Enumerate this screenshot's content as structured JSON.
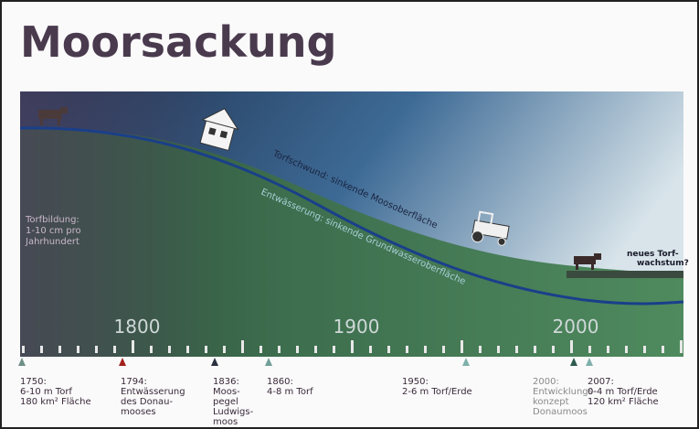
{
  "title": "Moorsackung",
  "diagram": {
    "peat_formation": [
      "Torfbildung:",
      "1-10 cm pro",
      "Jahrhundert"
    ],
    "surface_label": "Torfschwund: sinkende Moosoberfläche",
    "groundwater_label": "Entwässerung: sinkende Grundwasseroberfläche",
    "new_growth": [
      "neues Torf-",
      "wachstum?"
    ],
    "axis_labels": [
      "1800",
      "1900",
      "2000"
    ]
  },
  "events": [
    {
      "date": "1750:",
      "lines": [
        "6-10 m Torf",
        "180 km² Fläche"
      ]
    },
    {
      "date": "1794:",
      "lines": [
        "Entwässerung",
        "des Donau-",
        "mooses"
      ]
    },
    {
      "date": "1836:",
      "lines": [
        "Moos-",
        "pegel",
        "Ludwigs-",
        "moos"
      ]
    },
    {
      "date": "1860:",
      "lines": [
        "4-8 m Torf"
      ]
    },
    {
      "date": "1950:",
      "lines": [
        "2-6 m Torf/Erde"
      ]
    },
    {
      "date": "2000:",
      "lines": [
        "Entwicklungs-",
        "konzept",
        "Donaumoos"
      ]
    },
    {
      "date": "2007:",
      "lines": [
        "0-4 m Torf/Erde",
        "120 km² Fläche"
      ]
    }
  ]
}
